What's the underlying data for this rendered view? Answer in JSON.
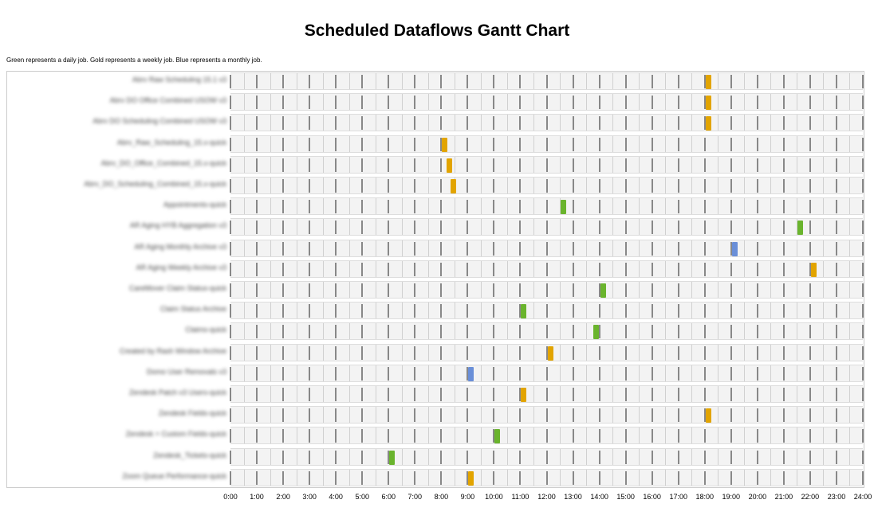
{
  "chart_data": {
    "type": "gantt",
    "title": "Scheduled Dataflows Gantt Chart",
    "note": "Green represents a daily job. Gold represents a weekly job. Blue represents a monthly job.",
    "colors": {
      "daily": "#6ab42d",
      "weekly": "#e2a400",
      "monthly": "#6a8fd8"
    },
    "x_ticks": [
      "0:00",
      "1:00",
      "2:00",
      "3:00",
      "4:00",
      "5:00",
      "6:00",
      "7:00",
      "8:00",
      "9:00",
      "10:00",
      "11:00",
      "12:00",
      "13:00",
      "14:00",
      "15:00",
      "16:00",
      "17:00",
      "18:00",
      "19:00",
      "20:00",
      "21:00",
      "22:00",
      "23:00",
      "24:00"
    ],
    "xlim": [
      0,
      24
    ],
    "tasks": [
      {
        "label": "Abrv Raw Scheduling 15.1 v3",
        "start": 18.0,
        "type": "weekly"
      },
      {
        "label": "Abrv DO Office Combined USOW v3",
        "start": 18.0,
        "type": "weekly"
      },
      {
        "label": "Abrv DO Scheduling Combined USOW v3",
        "start": 18.0,
        "type": "weekly"
      },
      {
        "label": "Abrv_Raw_Scheduling_15.x-quick",
        "start": 8.0,
        "type": "weekly"
      },
      {
        "label": "Abrv_DO_Office_Combined_15.x-quick",
        "start": 8.17,
        "type": "weekly"
      },
      {
        "label": "Abrv_DO_Scheduling_Combined_15.x-quick",
        "start": 8.33,
        "type": "weekly"
      },
      {
        "label": "Appointments-quick",
        "start": 12.5,
        "type": "daily"
      },
      {
        "label": "AR Aging HYB Aggregation v3",
        "start": 21.5,
        "type": "daily"
      },
      {
        "label": "AR Aging Monthly Archive v3",
        "start": 19.0,
        "type": "monthly"
      },
      {
        "label": "AR Aging Weekly Archive v3",
        "start": 22.0,
        "type": "weekly"
      },
      {
        "label": "CareMover Claim Status-quick",
        "start": 14.0,
        "type": "daily"
      },
      {
        "label": "Claim Status Archive",
        "start": 11.0,
        "type": "daily"
      },
      {
        "label": "Claims-quick",
        "start": 13.75,
        "type": "daily"
      },
      {
        "label": "Created by Rash Window Archive",
        "start": 12.0,
        "type": "weekly"
      },
      {
        "label": "Domo User Removals v3",
        "start": 9.0,
        "type": "monthly"
      },
      {
        "label": "Zendesk Patch v3 Users-quick",
        "start": 11.0,
        "type": "weekly"
      },
      {
        "label": "Zendesk Fields-quick",
        "start": 18.0,
        "type": "weekly"
      },
      {
        "label": "Zendesk + Custom Fields-quick",
        "start": 10.0,
        "type": "daily"
      },
      {
        "label": "Zendesk_Tickets-quick",
        "start": 6.0,
        "type": "daily"
      },
      {
        "label": "Zoom Queue Performance-quick",
        "start": 9.0,
        "type": "weekly"
      }
    ]
  }
}
